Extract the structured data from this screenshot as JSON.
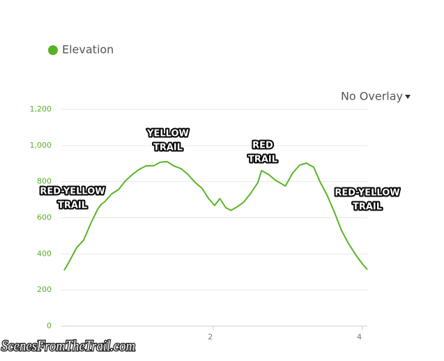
{
  "chart_data": {
    "type": "line",
    "legend": "Elevation",
    "overlay": "No Overlay",
    "watermark": "ScenesFromTheTrail.com",
    "annotations": [
      {
        "lines": [
          "RED-YELLOW",
          "TRAIL"
        ]
      },
      {
        "lines": [
          "YELLOW",
          "TRAIL"
        ]
      },
      {
        "lines": [
          "RED",
          "TRAIL"
        ]
      },
      {
        "lines": [
          "RED-YELLOW",
          "TRAIL"
        ]
      }
    ],
    "xlim": [
      0,
      4.07
    ],
    "xticks": [
      2,
      4
    ],
    "ylim": [
      0,
      1200
    ],
    "yticks": [
      0,
      200,
      400,
      600,
      800,
      {
        "value": 1000,
        "label": "1,000"
      },
      {
        "value": 1200,
        "label": "1,200"
      }
    ],
    "grid": true,
    "series": [
      {
        "name": "Elevation",
        "color": "#56b424",
        "x": [
          0,
          0.07,
          0.17,
          0.26,
          0.36,
          0.45,
          0.5,
          0.54,
          0.64,
          0.73,
          0.82,
          0.92,
          1.01,
          1.1,
          1.2,
          1.29,
          1.38,
          1.47,
          1.57,
          1.66,
          1.76,
          1.85,
          1.94,
          2.02,
          2.09,
          2.17,
          2.24,
          2.32,
          2.41,
          2.5,
          2.6,
          2.65,
          2.74,
          2.83,
          2.97,
          3.07,
          3.16,
          3.25,
          3.35,
          3.44,
          3.53,
          3.63,
          3.72,
          3.81,
          3.91,
          4.0,
          4.07
        ],
        "values": [
          309,
          359,
          436,
          475,
          571,
          648,
          675,
          687,
          733,
          756,
          803,
          841,
          868,
          888,
          888,
          907,
          911,
          888,
          872,
          841,
          795,
          764,
          706,
          668,
          706,
          656,
          641,
          660,
          687,
          733,
          795,
          861,
          841,
          810,
          776,
          849,
          891,
          903,
          880,
          795,
          725,
          629,
          533,
          463,
          397,
          347,
          313
        ]
      }
    ]
  }
}
